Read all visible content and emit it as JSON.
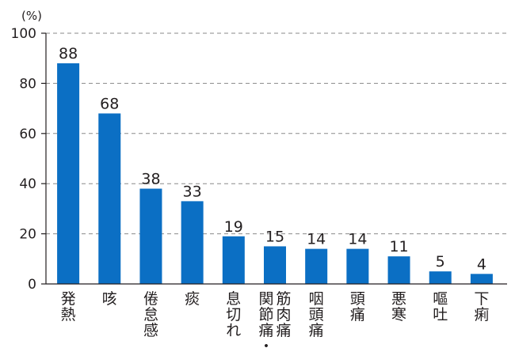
{
  "chart_data": {
    "type": "bar",
    "unit_label": "(%)",
    "title": "",
    "xlabel": "",
    "ylabel": "",
    "ylim": [
      0,
      100
    ],
    "yticks": [
      0,
      20,
      40,
      60,
      80,
      100
    ],
    "grid": true,
    "bar_color": "#0b6fc4",
    "categories": [
      "発熱",
      "咳",
      "倦怠感",
      "痰",
      "息切れ",
      "関節痛・筋肉痛",
      "咽頭痛",
      "頭痛",
      "悪寒",
      "嘔吐",
      "下痢"
    ],
    "category_lines": [
      [
        "発熱"
      ],
      [
        "咳"
      ],
      [
        "倦怠感"
      ],
      [
        "痰"
      ],
      [
        "息切れ"
      ],
      [
        "関節痛・",
        "筋肉痛"
      ],
      [
        "咽頭痛"
      ],
      [
        "頭痛"
      ],
      [
        "悪寒"
      ],
      [
        "嘔吐"
      ],
      [
        "下痢"
      ]
    ],
    "values": [
      88,
      68,
      38,
      33,
      19,
      15,
      14,
      14,
      11,
      5,
      4
    ]
  }
}
